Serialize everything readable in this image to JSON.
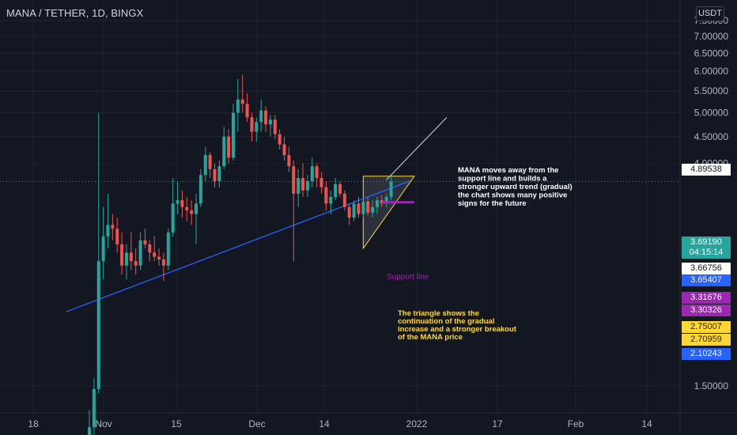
{
  "header": {
    "title": "MANA / TETHER, 1D, BINGX",
    "currency": "USDT"
  },
  "colors": {
    "background": "#131722",
    "grid": "#1e222d",
    "up": "#26a69a",
    "down": "#ef5350",
    "trendline": "#2962ff",
    "support": "#9c27b0",
    "triangle": "#fdd835",
    "annotation_white": "#ffffff",
    "annotation_yellow": "#fdd835"
  },
  "chart_data": {
    "type": "candlestick",
    "y_axis": {
      "ticks": [
        "1.50000",
        "4.00000",
        "4.50000",
        "5.00000",
        "5.50000",
        "6.00000",
        "6.50000",
        "7.00000",
        "7.50000"
      ],
      "scale": "log"
    },
    "x_axis": {
      "ticks": [
        "18",
        "Nov",
        "15",
        "Dec",
        "14",
        "2022",
        "17",
        "Feb",
        "14"
      ]
    },
    "price_tags": [
      {
        "value": "4.89538",
        "bg": "#ffffff",
        "fg": "#131722"
      },
      {
        "value": "3.69190",
        "bg": "#26a69a",
        "fg": "#ffffff"
      },
      {
        "value": "04:15:14",
        "bg": "#26a69a",
        "fg": "#ffffff"
      },
      {
        "value": "3.66756",
        "bg": "#ffffff",
        "fg": "#131722"
      },
      {
        "value": "3.65407",
        "bg": "#2962ff",
        "fg": "#ffffff"
      },
      {
        "value": "3.31676",
        "bg": "#9c27b0",
        "fg": "#ffffff"
      },
      {
        "value": "3.30326",
        "bg": "#9c27b0",
        "fg": "#ffffff"
      },
      {
        "value": "2.75007",
        "bg": "#fdd835",
        "fg": "#131722"
      },
      {
        "value": "2.70959",
        "bg": "#fdd835",
        "fg": "#131722"
      },
      {
        "value": "2.10243",
        "bg": "#2962ff",
        "fg": "#ffffff"
      }
    ],
    "candles": [
      {
        "o": 1.2,
        "h": 1.35,
        "l": 1.1,
        "c": 1.25
      },
      {
        "o": 1.25,
        "h": 1.55,
        "l": 1.2,
        "c": 1.48
      },
      {
        "o": 1.48,
        "h": 5.0,
        "l": 1.45,
        "c": 2.6
      },
      {
        "o": 2.6,
        "h": 3.3,
        "l": 2.4,
        "c": 2.9
      },
      {
        "o": 2.9,
        "h": 3.5,
        "l": 2.75,
        "c": 3.05
      },
      {
        "o": 3.05,
        "h": 3.2,
        "l": 2.85,
        "c": 3.0
      },
      {
        "o": 3.0,
        "h": 3.15,
        "l": 2.7,
        "c": 2.8
      },
      {
        "o": 2.8,
        "h": 2.95,
        "l": 2.45,
        "c": 2.55
      },
      {
        "o": 2.55,
        "h": 2.8,
        "l": 2.4,
        "c": 2.7
      },
      {
        "o": 2.7,
        "h": 2.95,
        "l": 2.5,
        "c": 2.6
      },
      {
        "o": 2.6,
        "h": 2.75,
        "l": 2.45,
        "c": 2.55
      },
      {
        "o": 2.55,
        "h": 2.95,
        "l": 2.5,
        "c": 2.85
      },
      {
        "o": 2.85,
        "h": 3.0,
        "l": 2.75,
        "c": 2.8
      },
      {
        "o": 2.8,
        "h": 2.85,
        "l": 2.6,
        "c": 2.7
      },
      {
        "o": 2.7,
        "h": 2.9,
        "l": 2.6,
        "c": 2.65
      },
      {
        "o": 2.65,
        "h": 2.75,
        "l": 2.55,
        "c": 2.62
      },
      {
        "o": 2.62,
        "h": 2.7,
        "l": 2.38,
        "c": 2.55
      },
      {
        "o": 2.55,
        "h": 3.0,
        "l": 2.5,
        "c": 2.95
      },
      {
        "o": 2.95,
        "h": 3.75,
        "l": 2.9,
        "c": 3.35
      },
      {
        "o": 3.35,
        "h": 3.7,
        "l": 3.2,
        "c": 3.4
      },
      {
        "o": 3.4,
        "h": 3.55,
        "l": 3.15,
        "c": 3.3
      },
      {
        "o": 3.3,
        "h": 3.45,
        "l": 3.1,
        "c": 3.25
      },
      {
        "o": 3.25,
        "h": 3.4,
        "l": 3.05,
        "c": 3.2
      },
      {
        "o": 3.2,
        "h": 3.5,
        "l": 2.8,
        "c": 3.35
      },
      {
        "o": 3.35,
        "h": 3.9,
        "l": 3.3,
        "c": 3.8
      },
      {
        "o": 3.8,
        "h": 4.3,
        "l": 3.7,
        "c": 4.15
      },
      {
        "o": 4.15,
        "h": 4.2,
        "l": 3.75,
        "c": 3.9
      },
      {
        "o": 3.9,
        "h": 4.0,
        "l": 3.6,
        "c": 3.7
      },
      {
        "o": 3.7,
        "h": 4.05,
        "l": 3.6,
        "c": 3.95
      },
      {
        "o": 3.95,
        "h": 4.7,
        "l": 3.9,
        "c": 4.5
      },
      {
        "o": 4.5,
        "h": 4.65,
        "l": 4.0,
        "c": 4.1
      },
      {
        "o": 4.1,
        "h": 5.2,
        "l": 4.05,
        "c": 5.0
      },
      {
        "o": 5.0,
        "h": 5.8,
        "l": 4.6,
        "c": 5.3
      },
      {
        "o": 5.3,
        "h": 5.9,
        "l": 5.0,
        "c": 5.2
      },
      {
        "o": 5.2,
        "h": 5.45,
        "l": 4.8,
        "c": 4.9
      },
      {
        "o": 4.9,
        "h": 5.0,
        "l": 4.4,
        "c": 4.6
      },
      {
        "o": 4.6,
        "h": 4.9,
        "l": 4.4,
        "c": 4.8
      },
      {
        "o": 4.8,
        "h": 5.3,
        "l": 4.6,
        "c": 5.05
      },
      {
        "o": 5.05,
        "h": 5.15,
        "l": 4.6,
        "c": 4.75
      },
      {
        "o": 4.75,
        "h": 4.95,
        "l": 4.5,
        "c": 4.85
      },
      {
        "o": 4.85,
        "h": 4.95,
        "l": 4.45,
        "c": 4.55
      },
      {
        "o": 4.55,
        "h": 4.65,
        "l": 4.25,
        "c": 4.35
      },
      {
        "o": 4.35,
        "h": 4.5,
        "l": 4.05,
        "c": 4.15
      },
      {
        "o": 4.15,
        "h": 4.3,
        "l": 3.85,
        "c": 3.95
      },
      {
        "o": 3.95,
        "h": 4.05,
        "l": 2.6,
        "c": 3.5
      },
      {
        "o": 3.5,
        "h": 3.9,
        "l": 3.3,
        "c": 3.75
      },
      {
        "o": 3.75,
        "h": 4.0,
        "l": 3.45,
        "c": 3.55
      },
      {
        "o": 3.55,
        "h": 3.8,
        "l": 3.45,
        "c": 3.7
      },
      {
        "o": 3.7,
        "h": 4.1,
        "l": 3.6,
        "c": 3.95
      },
      {
        "o": 3.95,
        "h": 4.0,
        "l": 3.6,
        "c": 3.75
      },
      {
        "o": 3.75,
        "h": 3.85,
        "l": 3.5,
        "c": 3.6
      },
      {
        "o": 3.6,
        "h": 3.7,
        "l": 3.25,
        "c": 3.35
      },
      {
        "o": 3.35,
        "h": 3.55,
        "l": 3.2,
        "c": 3.45
      },
      {
        "o": 3.45,
        "h": 3.75,
        "l": 3.4,
        "c": 3.65
      },
      {
        "o": 3.65,
        "h": 3.7,
        "l": 3.45,
        "c": 3.5
      },
      {
        "o": 3.5,
        "h": 3.55,
        "l": 3.25,
        "c": 3.3
      },
      {
        "o": 3.3,
        "h": 3.35,
        "l": 3.05,
        "c": 3.15
      },
      {
        "o": 3.15,
        "h": 3.4,
        "l": 3.1,
        "c": 3.35
      },
      {
        "o": 3.35,
        "h": 3.45,
        "l": 3.15,
        "c": 3.2
      },
      {
        "o": 3.2,
        "h": 3.4,
        "l": 3.15,
        "c": 3.38
      },
      {
        "o": 3.38,
        "h": 3.45,
        "l": 3.18,
        "c": 3.22
      },
      {
        "o": 3.22,
        "h": 3.4,
        "l": 3.15,
        "c": 3.3
      },
      {
        "o": 3.3,
        "h": 3.45,
        "l": 3.2,
        "c": 3.4
      },
      {
        "o": 3.4,
        "h": 3.48,
        "l": 3.3,
        "c": 3.35
      },
      {
        "o": 3.35,
        "h": 3.5,
        "l": 3.3,
        "c": 3.45
      },
      {
        "o": 3.45,
        "h": 3.8,
        "l": 3.4,
        "c": 3.69
      }
    ],
    "drawings": {
      "trendline": {
        "from": {
          "index": -5,
          "price": 2.08
        },
        "to": {
          "index": 69,
          "price": 3.7
        }
      },
      "support_line": {
        "from": {
          "index": 63,
          "price": 3.37
        },
        "to": {
          "index": 70,
          "price": 3.37
        }
      },
      "triangle": {
        "points": [
          {
            "index": 59,
            "price": 3.78
          },
          {
            "index": 70,
            "price": 3.78
          },
          {
            "index": 59,
            "price": 2.75
          }
        ]
      },
      "callout_line": {
        "from": {
          "index": 64,
          "price": 3.72
        },
        "to": {
          "index": 77,
          "price": 4.9
        }
      }
    },
    "annotations": [
      {
        "id": "mana-note",
        "lines": [
          "MANA moves away from the",
          "support line and builds a",
          "stronger upward trend (gradual)",
          "the chart shows many positive",
          "signs for the future"
        ],
        "color": "#ffffff"
      },
      {
        "id": "support-label",
        "lines": [
          "Support line"
        ],
        "color": "#9c27b0"
      },
      {
        "id": "triangle-note",
        "lines": [
          "The triangle shows the",
          "continuation of the gradual",
          "increase and a stronger breakout",
          "of the MANA price"
        ],
        "color": "#fdd835"
      }
    ],
    "last_price": 3.6919
  }
}
